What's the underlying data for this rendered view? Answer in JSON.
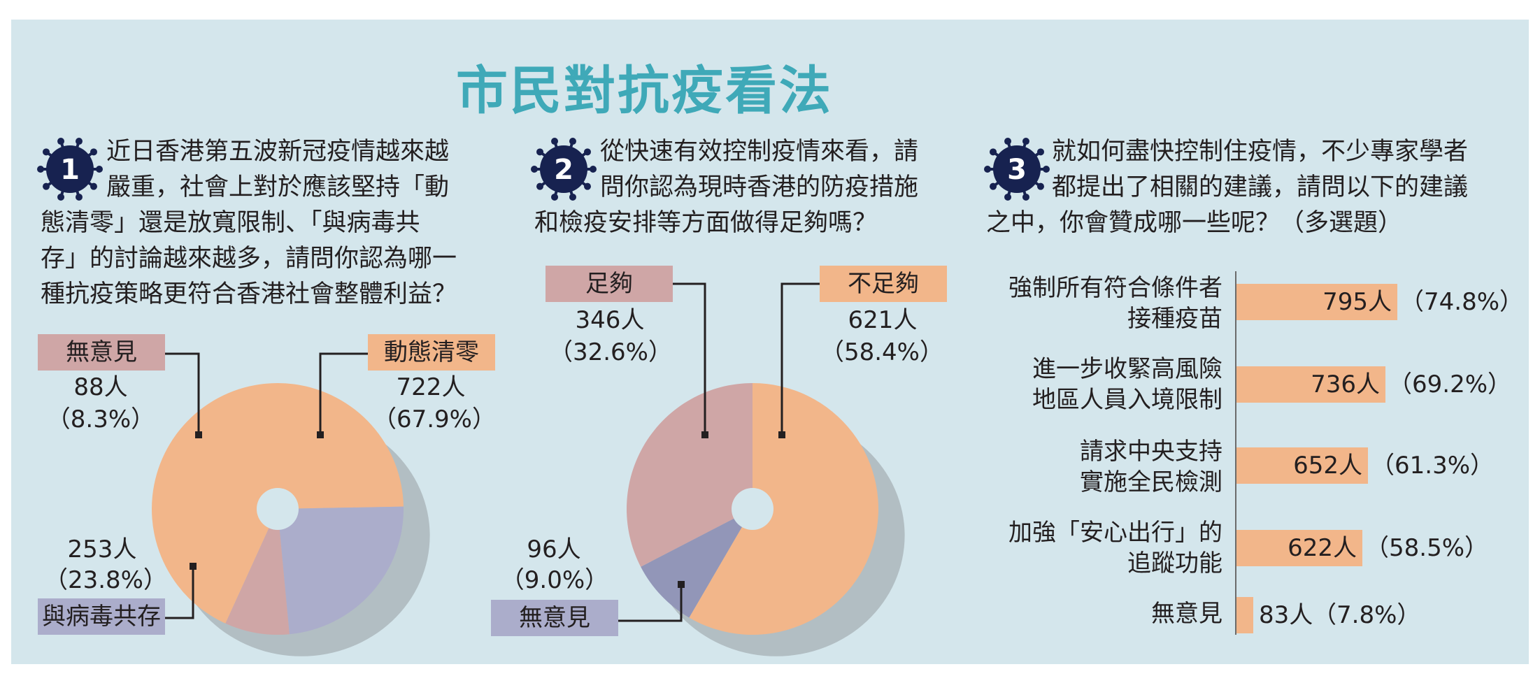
{
  "title": "市民對抗疫看法",
  "colors": {
    "panel": "#d4e6ec",
    "title": "#3fa9b8",
    "peach": "#f2b68a",
    "pink": "#cfa6a6",
    "lavender": "#abadcb",
    "slate": "#9296b8",
    "navy": "#172250"
  },
  "questions": [
    {
      "number": "1",
      "lines": [
        "近日香港第五波新冠疫情越來越",
        "嚴重，社會上對於應該堅持「動",
        "態清零」還是放寬限制、「與病毒共",
        "存」的討論越來越多，請問你認為哪一",
        "種抗疫策略更符合香港社會整體利益？"
      ]
    },
    {
      "number": "2",
      "lines": [
        "從快速有效控制疫情來看，請",
        "問你認為現時香港的防疫措施",
        "和檢疫安排等方面做得足夠嗎？"
      ]
    },
    {
      "number": "3",
      "lines": [
        "就如何盡快控制住疫情，不少專家學者",
        "都提出了相關的建議，請問以下的建議",
        "之中，你會贊成哪一些呢？（多選題）"
      ]
    }
  ],
  "chart_data": [
    {
      "type": "pie",
      "slices": [
        {
          "label": "動態清零",
          "count": "722人",
          "pct_text": "（67.9%）",
          "value": 67.9,
          "color": "#f2b68a"
        },
        {
          "label": "與病毒共存",
          "count": "253人",
          "pct_text": "（23.8%）",
          "value": 23.8,
          "color": "#abadcb"
        },
        {
          "label": "無意見",
          "count": "88人",
          "pct_text": "（8.3%）",
          "value": 8.3,
          "color": "#cfa6a6"
        }
      ]
    },
    {
      "type": "pie",
      "slices": [
        {
          "label": "不足夠",
          "count": "621人",
          "pct_text": "（58.4%）",
          "value": 58.4,
          "color": "#f2b68a"
        },
        {
          "label": "無意見",
          "count": "96人",
          "pct_text": "（9.0%）",
          "value": 9.0,
          "color": "#9296b8"
        },
        {
          "label": "足夠",
          "count": "346人",
          "pct_text": "（32.6%）",
          "value": 32.6,
          "color": "#cfa6a6"
        }
      ]
    },
    {
      "type": "bar",
      "orientation": "horizontal",
      "categories": [
        [
          "強制所有符合條件者",
          "接種疫苗"
        ],
        [
          "進一步收緊高風險",
          "地區人員入境限制"
        ],
        [
          "請求中央支持",
          "實施全民檢測"
        ],
        [
          "加強「安心出行」的",
          "追蹤功能"
        ],
        [
          "無意見"
        ]
      ],
      "values": [
        74.8,
        69.2,
        61.3,
        58.5,
        7.8
      ],
      "counts": [
        "795人",
        "736人",
        "652人",
        "622人",
        "83人"
      ],
      "pct_texts": [
        "（74.8%）",
        "（69.2%）",
        "（61.3%）",
        "（58.5%）",
        "（7.8%）"
      ]
    }
  ]
}
